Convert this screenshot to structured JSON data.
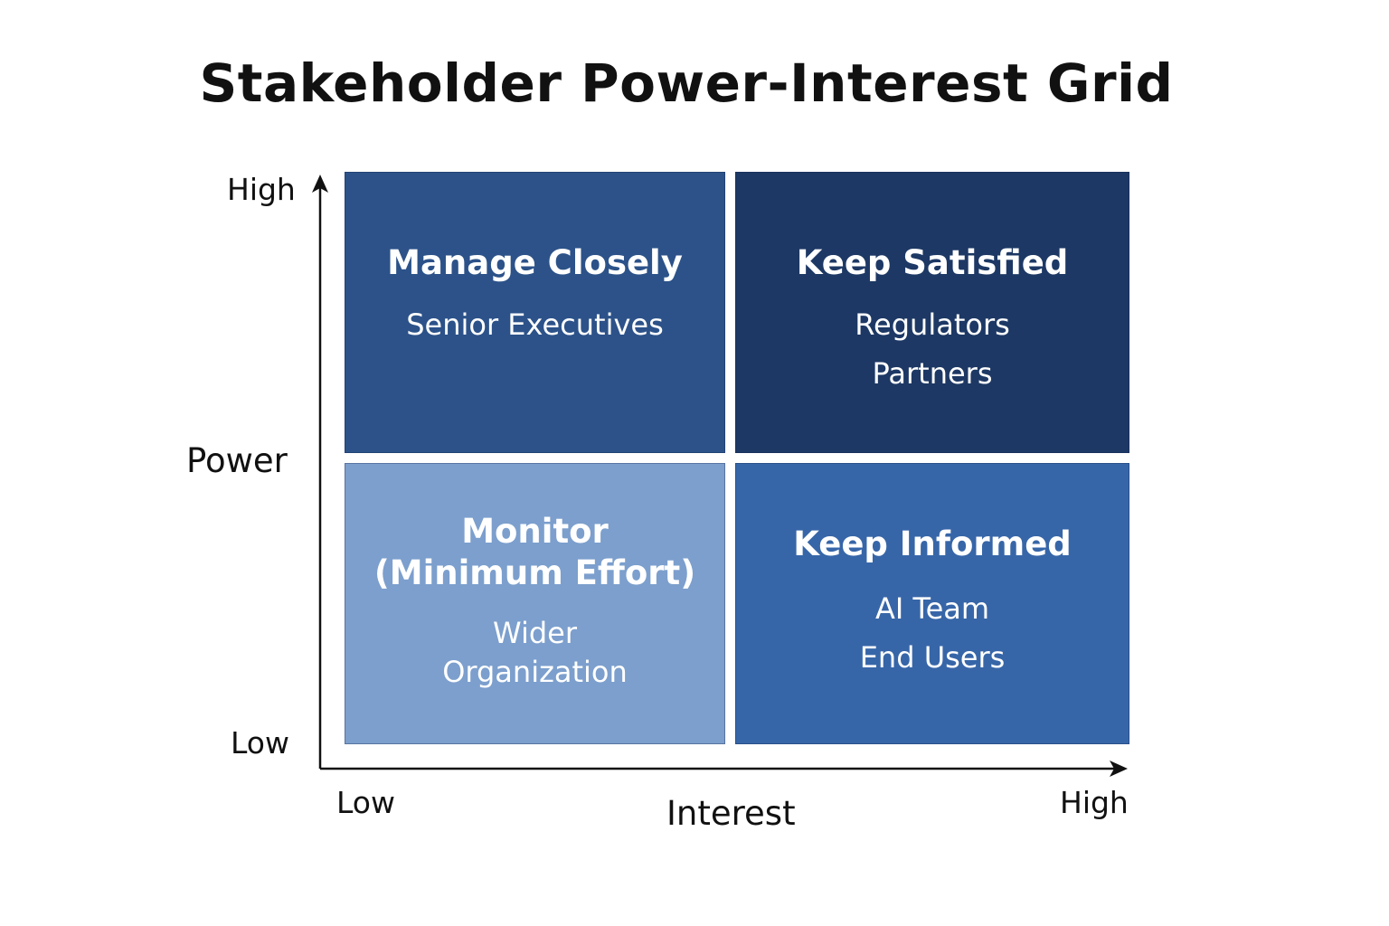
{
  "title": "Stakeholder Power-Interest Grid",
  "axes": {
    "y": {
      "title": "Power",
      "high_label": "High",
      "low_label": "Low"
    },
    "x": {
      "title": "Interest",
      "low_label": "Low",
      "high_label": "High"
    }
  },
  "colors": {
    "manage_closely": "#2c5289",
    "keep_satisfied": "#1d3864",
    "monitor": "#7c9fcd",
    "keep_informed": "#3766a8",
    "axis": "#111111"
  },
  "quadrants": [
    {
      "title": "Manage Closely",
      "items": [
        "Senior Executives"
      ]
    },
    {
      "title": "Keep Satisfied",
      "items": [
        "Regulators",
        "Partners"
      ]
    },
    {
      "title_lines": [
        "Monitor",
        "(Minimum Effort)"
      ],
      "items": [
        "Wider",
        "Organization"
      ]
    },
    {
      "title": "Keep Informed",
      "items": [
        "AI Team",
        "End Users"
      ]
    }
  ]
}
